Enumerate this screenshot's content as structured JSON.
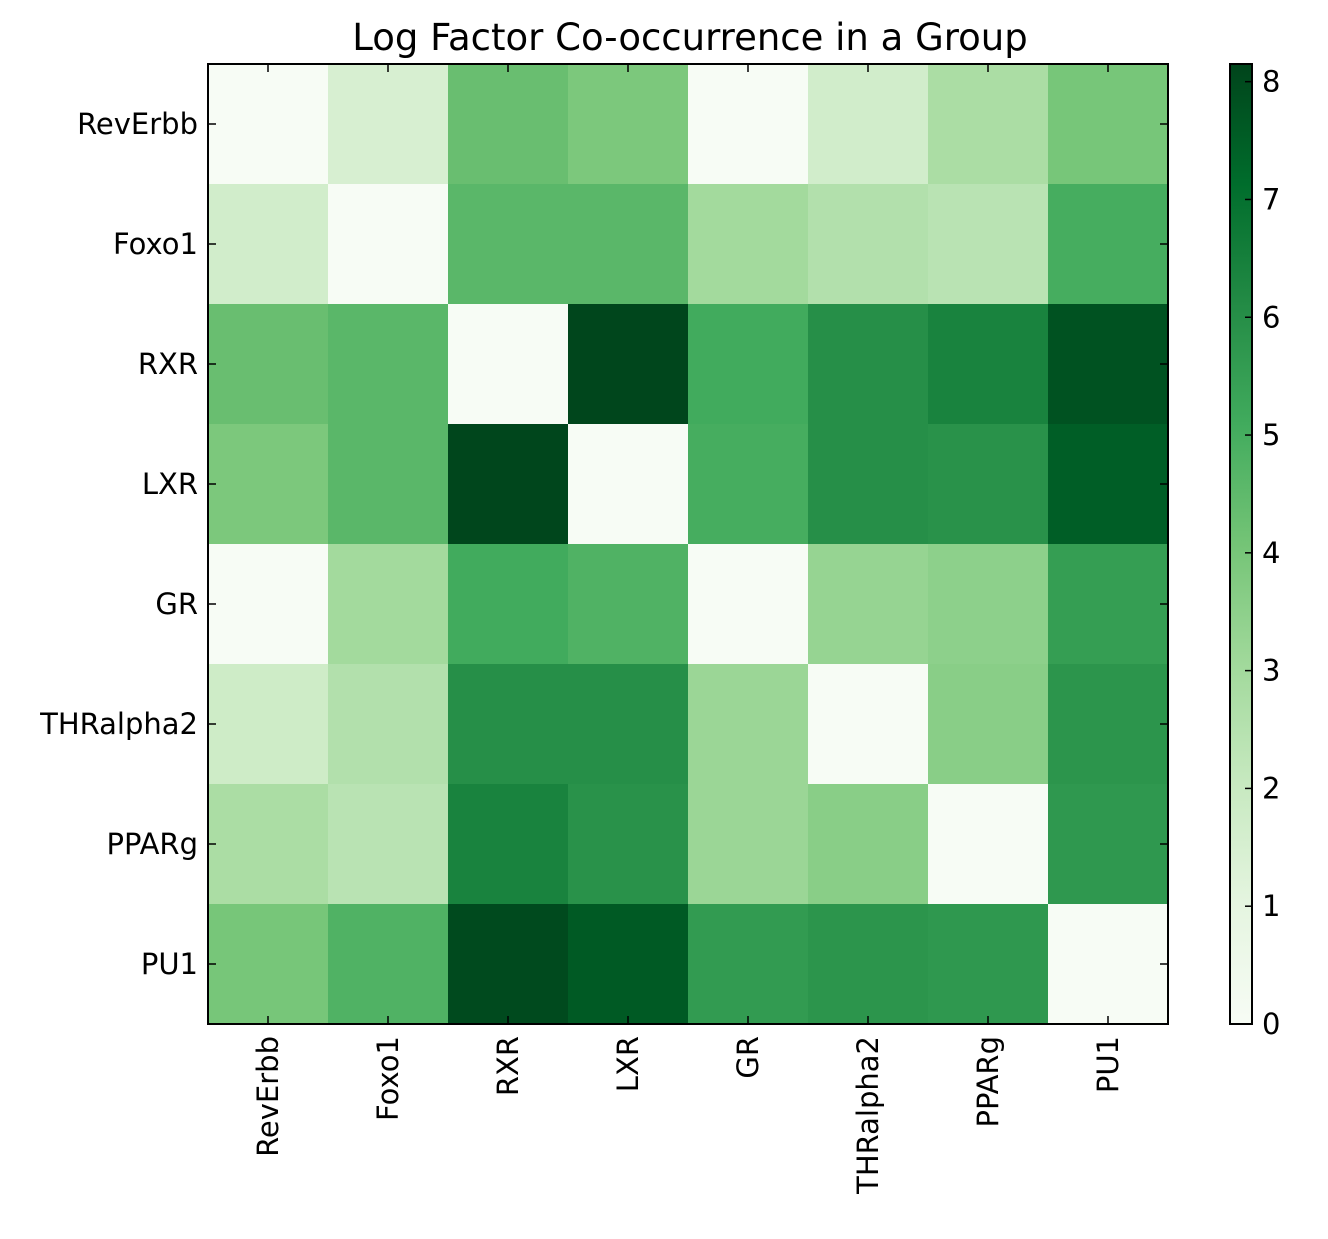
{
  "chart_data": {
    "type": "heatmap",
    "title": "Log Factor Co-occurrence in a Group",
    "row_labels": [
      "RevErbb",
      "Foxo1",
      "RXR",
      "LXR",
      "GR",
      "THRalpha2",
      "PPARg",
      "PU1"
    ],
    "col_labels": [
      "RevErbb",
      "Foxo1",
      "RXR",
      "LXR",
      "GR",
      "THRalpha2",
      "PPARg",
      "PU1"
    ],
    "values": [
      [
        0.0,
        1.5,
        4.3,
        3.9,
        0.0,
        1.7,
        2.8,
        4.0
      ],
      [
        1.7,
        0.0,
        4.6,
        4.6,
        3.0,
        2.6,
        2.4,
        5.0
      ],
      [
        4.3,
        4.6,
        0.0,
        8.1,
        5.1,
        6.0,
        6.4,
        7.8
      ],
      [
        3.9,
        4.6,
        8.1,
        0.0,
        5.0,
        6.0,
        5.9,
        7.5
      ],
      [
        0.0,
        3.0,
        5.1,
        4.8,
        0.0,
        3.3,
        3.5,
        5.5
      ],
      [
        1.8,
        2.6,
        6.0,
        6.0,
        3.2,
        0.0,
        3.6,
        5.8
      ],
      [
        2.8,
        2.4,
        6.4,
        5.9,
        3.2,
        3.6,
        0.0,
        5.7
      ],
      [
        4.0,
        4.8,
        8.0,
        7.6,
        5.6,
        5.8,
        5.7,
        0.0
      ]
    ],
    "colormap": "Greens",
    "colorbar": {
      "min": 0,
      "max": 8.15,
      "ticks": [
        "0",
        "1",
        "2",
        "3",
        "4",
        "5",
        "6",
        "7",
        "8"
      ]
    },
    "grid": false
  }
}
